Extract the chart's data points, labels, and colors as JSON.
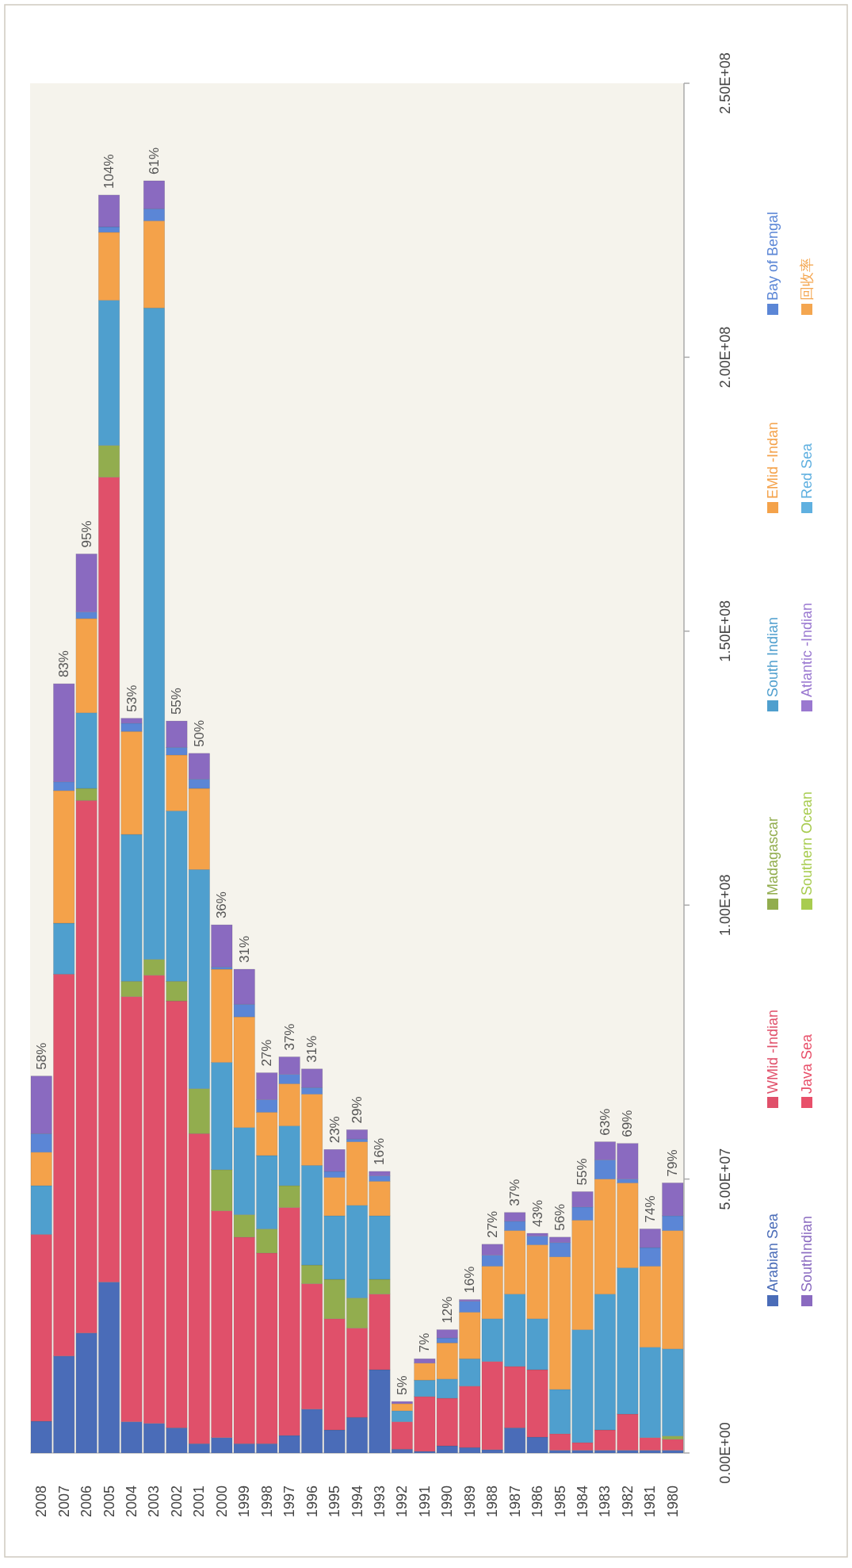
{
  "chart_data": {
    "type": "bar",
    "stacked": true,
    "legend": "right",
    "categories": [
      "2008",
      "2007",
      "2006",
      "2005",
      "2004",
      "2003",
      "2002",
      "2001",
      "2000",
      "1999",
      "1998",
      "1997",
      "1996",
      "1995",
      "1994",
      "1993",
      "1992",
      "1991",
      "1990",
      "1989",
      "1988",
      "1987",
      "1986",
      "1985",
      "1984",
      "1983",
      "1982",
      "1981",
      "1980"
    ],
    "ylim": [
      0,
      250000000
    ],
    "yticks": [
      {
        "value": 0,
        "label": "0.00E+00"
      },
      {
        "value": 50000000,
        "label": "5.00E+07"
      },
      {
        "value": 100000000,
        "label": "1.00E+08"
      },
      {
        "value": 150000000,
        "label": "1.50E+08"
      },
      {
        "value": 200000000,
        "label": "2.00E+08"
      },
      {
        "value": 250000000,
        "label": "2.50E+08"
      }
    ],
    "series": [
      {
        "name": "Arabian Sea",
        "color": "#4a6cb8",
        "values": [
          5800000.0,
          17700000.0,
          21900000.0,
          31200000.0,
          5700000.0,
          5400000.0,
          4600000.0,
          1700000.0,
          2800000.0,
          1700000.0,
          1700000.0,
          3200000.0,
          8000000.0,
          4200000.0,
          6500000.0,
          15200000.0,
          700000.0,
          300000.0,
          1300000.0,
          1000000.0,
          600000.0,
          4600000.0,
          2900000.0,
          500000.0,
          500000.0,
          500000.0,
          500000.0,
          500000.0,
          500000.0
        ]
      },
      {
        "name": "WMid -Indian",
        "color": "#e0506a",
        "values": [
          34100000.0,
          69700000.0,
          97200000.0,
          146900000.0,
          77600000.0,
          81800000.0,
          77900000.0,
          56600000.0,
          41400000.0,
          37700000.0,
          34800000.0,
          41600000.0,
          22900000.0,
          20300000.0,
          16300000.0,
          13800000.0,
          5000000.0,
          10000000.0,
          8700000.0,
          11200000.0,
          16100000.0,
          11200000.0,
          12300000.0,
          3000000.0,
          1400000.0,
          3700000.0,
          6600000.0,
          2300000.0,
          2000000.0
        ]
      },
      {
        "name": "Madagascar",
        "color": "#92ad4e",
        "values": [
          null,
          null,
          2200000.0,
          5800000.0,
          2800000.0,
          2900000.0,
          3600000.0,
          8200000.0,
          7500000.0,
          4100000.0,
          4400000.0,
          4000000.0,
          3400000.0,
          7200000.0,
          5500000.0,
          2700000.0,
          null,
          null,
          null,
          null,
          null,
          null,
          null,
          null,
          null,
          null,
          null,
          null,
          600000.0
        ]
      },
      {
        "name": "South Indian",
        "color": "#4f9fce",
        "values": [
          8900000.0,
          9300000.0,
          13800000.0,
          26500000.0,
          26800000.0,
          118900000.0,
          31100000.0,
          40000000.0,
          19600000.0,
          15900000.0,
          13400000.0,
          10900000.0,
          18200000.0,
          11600000.0,
          16900000.0,
          11600000.0,
          2000000.0,
          3000000.0,
          3500000.0,
          5000000.0,
          7800000.0,
          13200000.0,
          9300000.0,
          8100000.0,
          20600000.0,
          24800000.0,
          26700000.0,
          16500000.0,
          15900000.0
        ]
      },
      {
        "name": "EMid -Indan",
        "color": "#f4a24a",
        "values": [
          6100000.0,
          24200000.0,
          17200000.0,
          12400000.0,
          18800000.0,
          15900000.0,
          10200000.0,
          14800000.0,
          17000000.0,
          20200000.0,
          7900000.0,
          7700000.0,
          13000000.0,
          7000000.0,
          11600000.0,
          6300000.0,
          1300000.0,
          3100000.0,
          6600000.0,
          8500000.0,
          9600000.0,
          11600000.0,
          13500000.0,
          24200000.0,
          20000000.0,
          21000000.0,
          15500000.0,
          14800000.0,
          21600000.0
        ]
      },
      {
        "name": "Bay of Bengal",
        "color": "#5b86d6",
        "values": [
          3400000.0,
          1600000.0,
          1200000.0,
          1000000.0,
          1500000.0,
          2200000.0,
          1400000.0,
          1700000.0,
          400000.0,
          2300000.0,
          2300000.0,
          1700000.0,
          1200000.0,
          1100000.0,
          500000.0,
          1000000.0,
          null,
          null,
          900000.0,
          2000000.0,
          2000000.0,
          1700000.0,
          1600000.0,
          2600000.0,
          2400000.0,
          3500000.0,
          700000.0,
          3400000.0,
          2700000.0
        ]
      },
      {
        "name": "SouthIndian",
        "color": "#8a6ac0",
        "values": [
          10500000.0,
          17900000.0,
          10600000.0,
          5800000.0,
          900000.0,
          5100000.0,
          4800000.0,
          4700000.0,
          7700000.0,
          6400000.0,
          4900000.0,
          3200000.0,
          3400000.0,
          4000000.0,
          1700000.0,
          800000.0,
          400000.0,
          800000.0,
          1500000.0,
          300000.0,
          2000000.0,
          1600000.0,
          500000.0,
          1000000.0,
          2800000.0,
          3300000.0,
          6500000.0,
          3400000.0,
          6000000.0
        ]
      },
      {
        "name": "Java Sea",
        "color": "#e8506a",
        "values": [
          null,
          null,
          null,
          null,
          null,
          null,
          null,
          null,
          null,
          null,
          null,
          null,
          null,
          null,
          null,
          null,
          null,
          null,
          null,
          null,
          null,
          null,
          null,
          null,
          null,
          null,
          null,
          null,
          null
        ]
      },
      {
        "name": "Southern Ocean",
        "color": "#a8cc50",
        "values": [
          null,
          null,
          null,
          null,
          null,
          null,
          null,
          null,
          null,
          null,
          null,
          null,
          null,
          null,
          null,
          null,
          null,
          null,
          null,
          null,
          null,
          null,
          null,
          null,
          null,
          null,
          null,
          null,
          null
        ]
      },
      {
        "name": "Atlantic -Indian",
        "color": "#9a78d0",
        "values": [
          null,
          null,
          null,
          null,
          null,
          null,
          null,
          null,
          null,
          null,
          null,
          null,
          null,
          null,
          null,
          null,
          null,
          null,
          null,
          null,
          null,
          null,
          null,
          null,
          null,
          null,
          null,
          null,
          null
        ]
      },
      {
        "name": "Red Sea",
        "color": "#5fb0e0",
        "values": [
          null,
          null,
          null,
          null,
          null,
          null,
          null,
          null,
          null,
          null,
          null,
          null,
          null,
          null,
          null,
          null,
          null,
          null,
          null,
          null,
          null,
          null,
          null,
          null,
          null,
          null,
          null,
          null,
          null
        ]
      },
      {
        "name": "回收率",
        "color": "#f4a650",
        "values": [
          null,
          null,
          null,
          null,
          null,
          null,
          null,
          null,
          null,
          null,
          null,
          null,
          null,
          null,
          null,
          null,
          null,
          null,
          null,
          null,
          null,
          null,
          null,
          null,
          null,
          null,
          null,
          null,
          null
        ]
      }
    ],
    "annotations": [
      {
        "text": "58%",
        "x": "2008",
        "y": 68800000.0
      },
      {
        "text": "83%",
        "x": "2007",
        "y": 140400000.0
      },
      {
        "text": "95%",
        "x": "2006",
        "y": 164100000.0
      },
      {
        "text": "104%",
        "x": "2005",
        "y": 229600000.0
      },
      {
        "text": "53%",
        "x": "2004",
        "y": 134100000.0
      },
      {
        "text": "61%",
        "x": "2003",
        "y": 232200000.0
      },
      {
        "text": "55%",
        "x": "2002",
        "y": 133600000.0
      },
      {
        "text": "50%",
        "x": "2001",
        "y": 127700000.0
      },
      {
        "text": "36%",
        "x": "2000",
        "y": 96400000.0
      },
      {
        "text": "31%",
        "x": "1999",
        "y": 88300000.0
      },
      {
        "text": "27%",
        "x": "1998",
        "y": 69400000.0
      },
      {
        "text": "37%",
        "x": "1997",
        "y": 72300000.0
      },
      {
        "text": "31%",
        "x": "1996",
        "y": 70100000.0
      },
      {
        "text": "23%",
        "x": "1995",
        "y": 55400000.0
      },
      {
        "text": "29%",
        "x": "1994",
        "y": 59000000.0
      },
      {
        "text": "16%",
        "x": "1993",
        "y": 51400000.0
      },
      {
        "text": "5%",
        "x": "1992",
        "y": 9400000.0
      },
      {
        "text": "7%",
        "x": "1991",
        "y": 17200000.0
      },
      {
        "text": "12%",
        "x": "1990",
        "y": 22500000.0
      },
      {
        "text": "16%",
        "x": "1989",
        "y": 28000000.0
      },
      {
        "text": "27%",
        "x": "1988",
        "y": 38100000.0
      },
      {
        "text": "37%",
        "x": "1987",
        "y": 43900000.0
      },
      {
        "text": "43%",
        "x": "1986",
        "y": 40100000.0
      },
      {
        "text": "56%",
        "x": "1985",
        "y": 39400000.0
      },
      {
        "text": "55%",
        "x": "1984",
        "y": 47700000.0
      },
      {
        "text": "63%",
        "x": "1983",
        "y": 56800000.0
      },
      {
        "text": "69%",
        "x": "1982",
        "y": 56500000.0
      },
      {
        "text": "74%",
        "x": "1981",
        "y": 40900000.0
      },
      {
        "text": "79%",
        "x": "1980",
        "y": 49300000.0
      }
    ]
  }
}
